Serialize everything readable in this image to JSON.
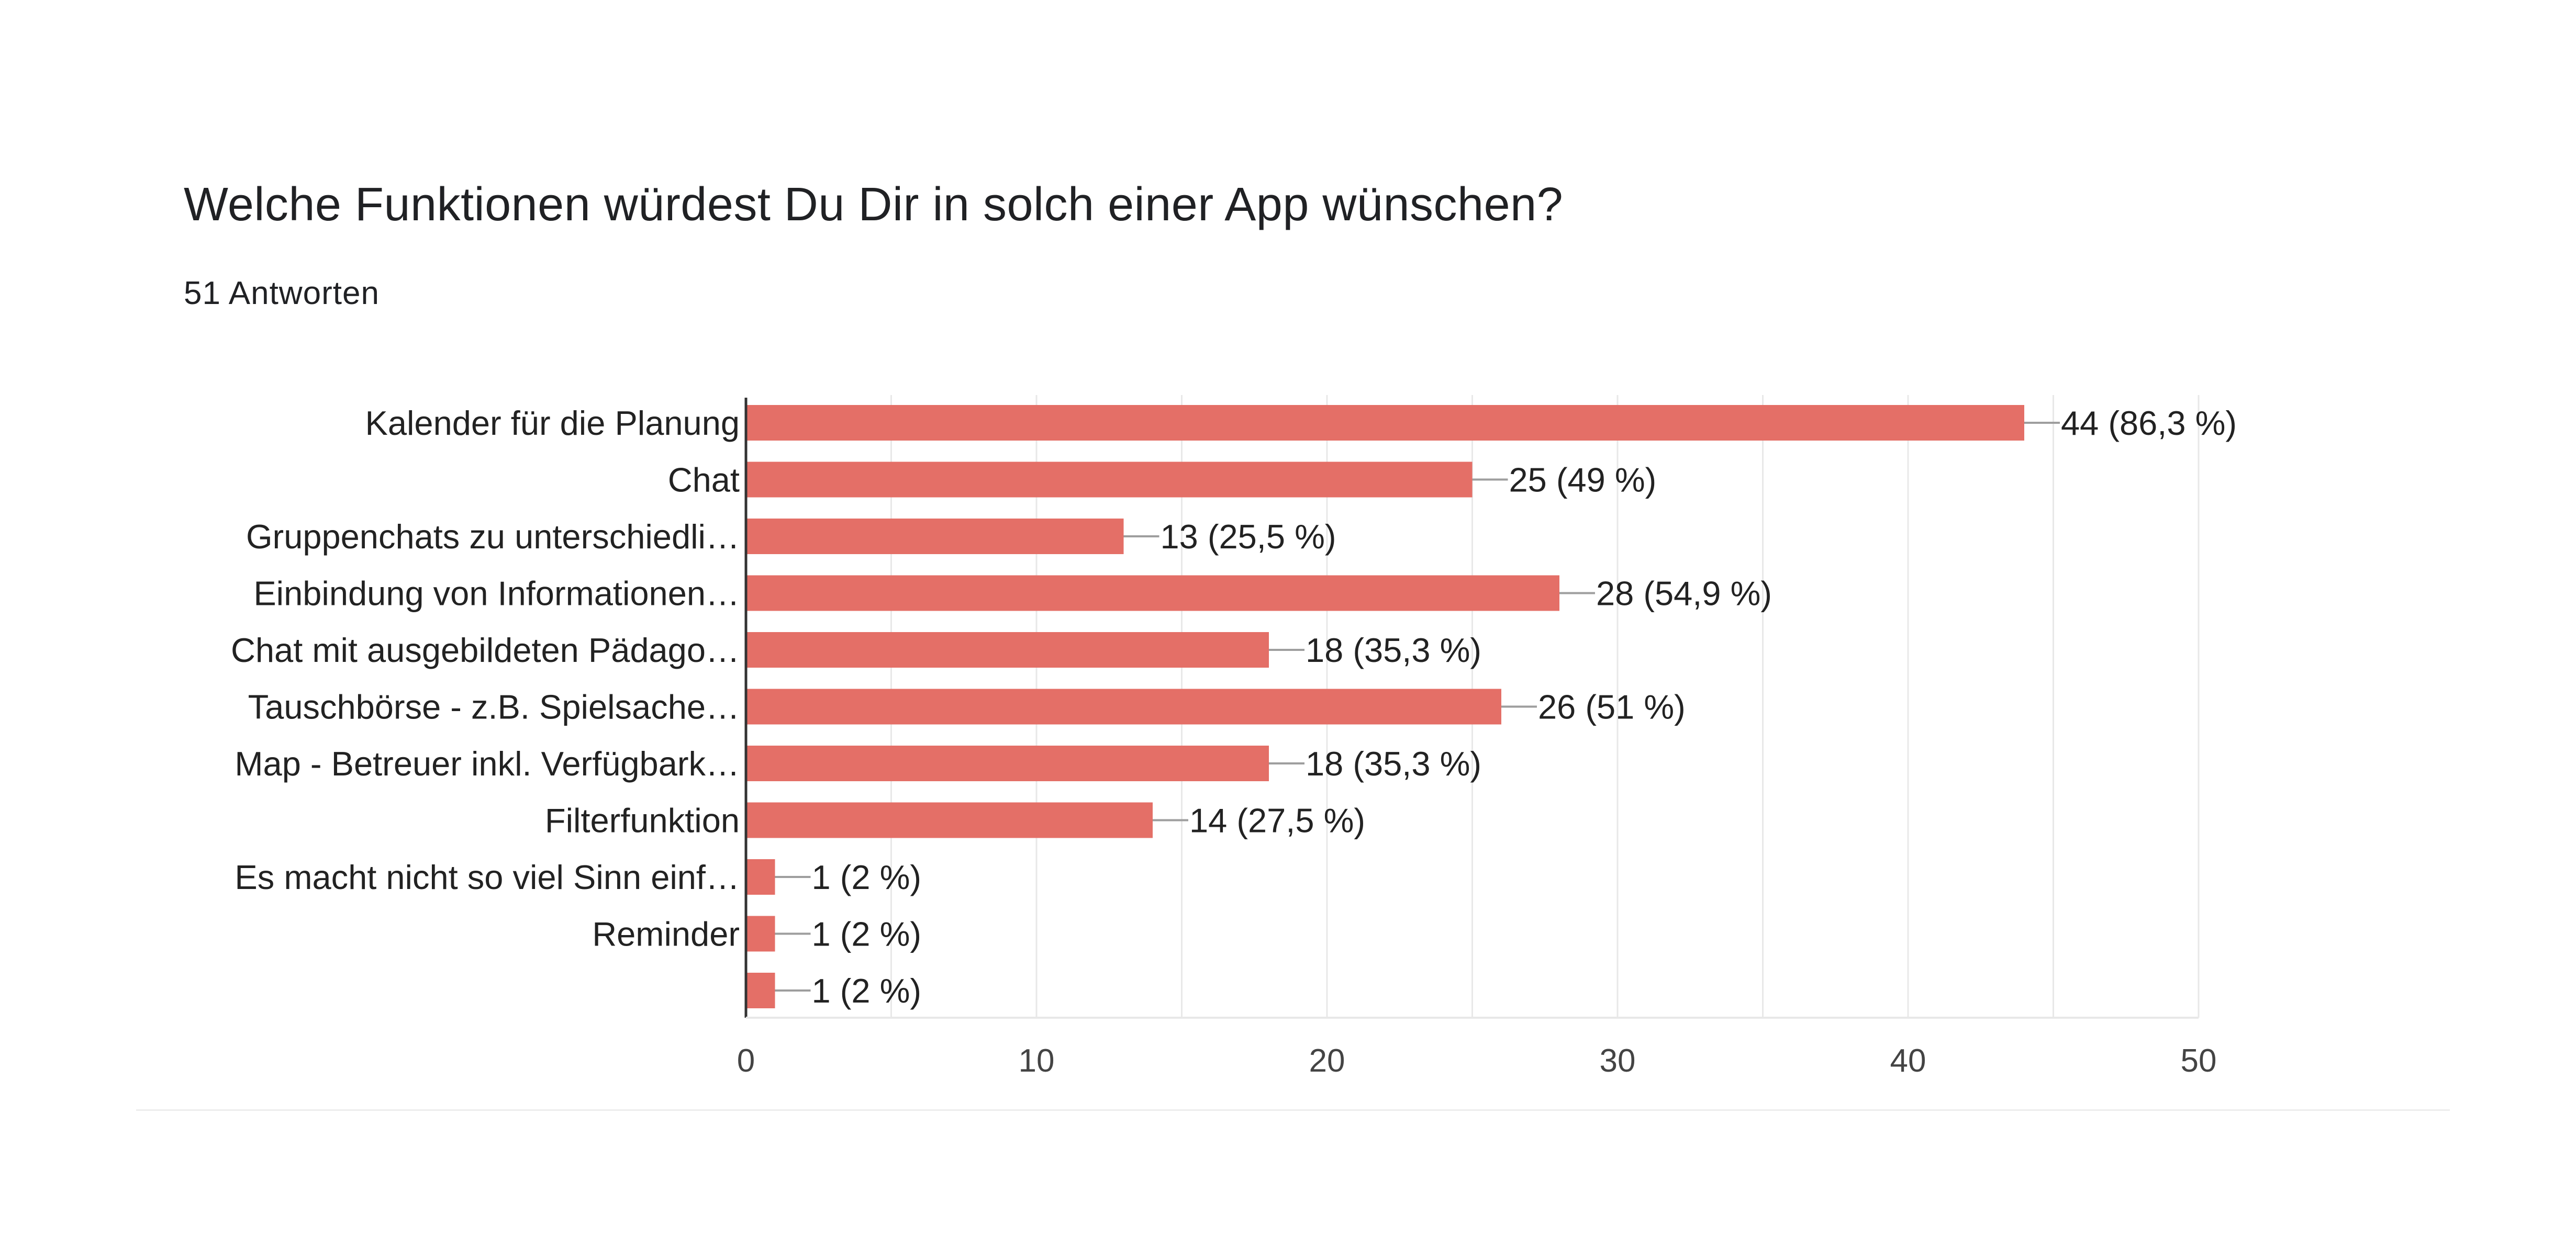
{
  "header": {
    "title": "Welche Funktionen würdest Du Dir in solch einer App wünschen?",
    "response_count": "51 Antworten"
  },
  "colors": {
    "bar": "#e46f67",
    "grid": "#e8e8e8",
    "axis": "#333333",
    "leader": "#9e9e9e"
  },
  "chart_data": {
    "type": "bar",
    "orientation": "horizontal",
    "title": "Welche Funktionen würdest Du Dir in solch einer App wünschen?",
    "subtitle": "51 Antworten",
    "xlabel": "",
    "ylabel": "",
    "xlim": [
      0,
      50
    ],
    "xticks": [
      0,
      10,
      20,
      30,
      40,
      50
    ],
    "grid": true,
    "categories": [
      "Kalender für die Planung",
      "Chat",
      "Gruppenchats zu unterschiedli…",
      "Einbindung von Informationen…",
      "Chat mit ausgebildeten Pädago…",
      "Tauschbörse - z.B. Spielsache…",
      "Map - Betreuer inkl. Verfügbark…",
      "Filterfunktion",
      "Es macht nicht so viel Sinn einf…",
      "Reminder",
      ""
    ],
    "values": [
      44,
      25,
      13,
      28,
      18,
      26,
      18,
      14,
      1,
      1,
      1
    ],
    "data_labels": [
      "44 (86,3 %)",
      "25 (49 %)",
      "13 (25,5 %)",
      "28 (54,9 %)",
      "18 (35,3 %)",
      "26 (51 %)",
      "18 (35,3 %)",
      "14 (27,5 %)",
      "1 (2 %)",
      "1 (2 %)",
      "1 (2 %)"
    ]
  }
}
